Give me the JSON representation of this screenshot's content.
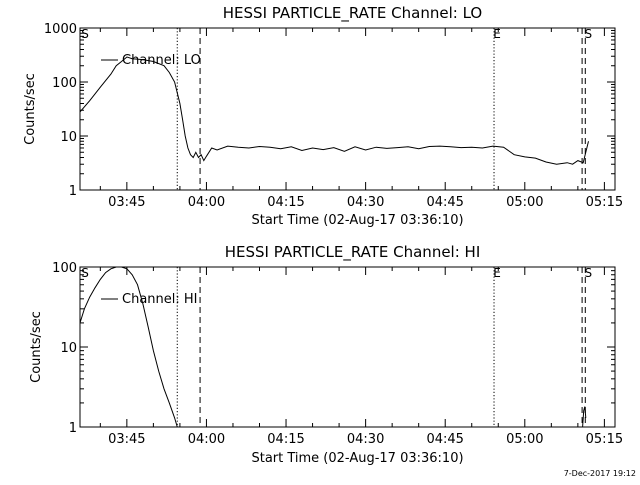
{
  "footer_timestamp": "7-Dec-2017 19:12",
  "chart_data": [
    {
      "type": "line",
      "title": "HESSI PARTICLE_RATE Channel: LO",
      "xlabel": "Start Time (02-Aug-17 03:36:10)",
      "ylabel": "Counts/sec",
      "yscale": "log",
      "ylim": [
        1,
        1000
      ],
      "xlim_min": [
        36.17,
        116.5
      ],
      "xticks": [
        {
          "min": 45,
          "label": "03:45"
        },
        {
          "min": 60,
          "label": "04:00"
        },
        {
          "min": 75,
          "label": "04:15"
        },
        {
          "min": 90,
          "label": "04:30"
        },
        {
          "min": 105,
          "label": "04:45"
        },
        {
          "min": 120,
          "label": "05:00"
        },
        {
          "min": 135,
          "label": "05:15"
        }
      ],
      "yticks": [
        {
          "value": 1,
          "label": "1"
        },
        {
          "value": 10,
          "label": "10"
        },
        {
          "value": 100,
          "label": "100"
        },
        {
          "value": 1000,
          "label": "1000"
        }
      ],
      "legend": {
        "label": "Channel: LO",
        "position": "top-left"
      },
      "series": [
        {
          "x": [
            36.17,
            38,
            40,
            42,
            43,
            44,
            45,
            46,
            48,
            50,
            52,
            53,
            54,
            55,
            55.5,
            56,
            56.5,
            57,
            57.5,
            58,
            58.5,
            59,
            59.5,
            60,
            61,
            62,
            64,
            66,
            68,
            70,
            72,
            74,
            76,
            78,
            80,
            82,
            84,
            86,
            88,
            90,
            92,
            94,
            96,
            98,
            100,
            102,
            104,
            106,
            108,
            110,
            112,
            114,
            116,
            118,
            120,
            122,
            124,
            126,
            128,
            129,
            130,
            131,
            132
          ],
          "y": [
            28,
            45,
            80,
            140,
            200,
            240,
            290,
            270,
            260,
            240,
            200,
            150,
            100,
            40,
            20,
            10,
            6,
            4.5,
            4,
            5,
            4,
            4.5,
            3.5,
            4.2,
            6,
            5.5,
            6.5,
            6.2,
            6,
            6.4,
            6.2,
            5.8,
            6.3,
            5.4,
            6,
            5.6,
            6.1,
            5.2,
            6.3,
            5.5,
            6.2,
            5.9,
            6.1,
            6.3,
            5.8,
            6.4,
            6.5,
            6.3,
            6.1,
            6.2,
            6,
            6.5,
            6.2,
            4.5,
            4.1,
            3.9,
            3.3,
            3.0,
            3.2,
            3.0,
            3.5,
            3.2,
            8
          ]
        }
      ],
      "markers": [
        {
          "min": 54.5,
          "style": "dotted"
        },
        {
          "min": 58.8,
          "style": "dashed"
        },
        {
          "min": 114.2,
          "style": "dotted",
          "label": "E"
        },
        {
          "min": 130.8,
          "style": "dashed"
        },
        {
          "min": 131.4,
          "style": "dashed",
          "label": "S"
        }
      ],
      "start_label": "S"
    },
    {
      "type": "line",
      "title": "HESSI PARTICLE_RATE Channel: HI",
      "xlabel": "Start Time (02-Aug-17 03:36:10)",
      "ylabel": "Counts/sec",
      "yscale": "log",
      "ylim": [
        1,
        100
      ],
      "xticks": [
        {
          "min": 45,
          "label": "03:45"
        },
        {
          "min": 60,
          "label": "04:00"
        },
        {
          "min": 75,
          "label": "04:15"
        },
        {
          "min": 90,
          "label": "04:30"
        },
        {
          "min": 105,
          "label": "04:45"
        },
        {
          "min": 120,
          "label": "05:00"
        },
        {
          "min": 135,
          "label": "05:15"
        }
      ],
      "yticks": [
        {
          "value": 1,
          "label": "1"
        },
        {
          "value": 10,
          "label": "10"
        },
        {
          "value": 100,
          "label": "100"
        }
      ],
      "legend": {
        "label": "Channel: HI",
        "position": "top-left"
      },
      "series": [
        {
          "x": [
            36.17,
            37,
            38,
            39,
            40,
            41,
            42,
            43,
            44,
            45,
            46,
            47,
            48,
            49,
            50,
            51,
            52,
            53,
            54,
            54.5,
            130.9,
            131.1,
            131.3,
            131.5
          ],
          "y": [
            20,
            30,
            42,
            55,
            70,
            85,
            95,
            100,
            100,
            95,
            80,
            60,
            35,
            18,
            9,
            5,
            3,
            2,
            1.3,
            1.0,
            1.0,
            1.6,
            1.8,
            1.3
          ]
        }
      ],
      "markers": [
        {
          "min": 54.5,
          "style": "dotted"
        },
        {
          "min": 58.8,
          "style": "dashed"
        },
        {
          "min": 114.2,
          "style": "dotted",
          "label": "E"
        },
        {
          "min": 130.8,
          "style": "dashed"
        },
        {
          "min": 131.4,
          "style": "dashed",
          "label": "S"
        }
      ],
      "start_label": "S"
    }
  ]
}
